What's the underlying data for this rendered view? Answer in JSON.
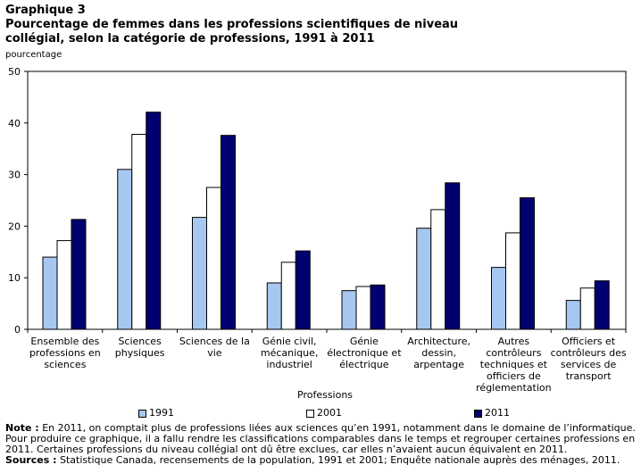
{
  "header": {
    "label": "Graphique 3",
    "title_line1": "Pourcentage de femmes dans les professions scientifiques de niveau",
    "title_line2": "collégial, selon la catégorie de professions, 1991 à 2011"
  },
  "notes": {
    "note_label": "Note :",
    "note_text": " En 2011, on comptait plus de professions liées aux sciences qu’en 1991, notamment dans le domaine de l’informatique. Pour produire ce graphique, il a fallu rendre les classifications comparables dans le temps et regrouper certaines professions en 2011. Certaines professions du niveau collégial ont dû être exclues, car elles n’avaient aucun équivalent en 2011.",
    "sources_label": "Sources :",
    "sources_text": " Statistique Canada, recensements de la population, 1991 et 2001; Enquête nationale auprès des ménages, 2011."
  },
  "chart_data": {
    "type": "bar",
    "title": "Pourcentage de femmes dans les professions scientifiques de niveau collégial, selon la catégorie de professions, 1991 à 2011",
    "ylabel": "pourcentage",
    "xlabel": "Professions",
    "ylim": [
      0,
      50
    ],
    "yticks": [
      0,
      10,
      20,
      30,
      40,
      50
    ],
    "grid": false,
    "legend_position": "bottom",
    "categories": [
      [
        "Ensemble des",
        "professions en",
        "sciences"
      ],
      [
        "Sciences",
        "physiques"
      ],
      [
        "Sciences de la",
        "vie"
      ],
      [
        "Génie civil,",
        "mécanique,",
        "industriel"
      ],
      [
        "Génie",
        "électronique et",
        "électrique"
      ],
      [
        "Architecture,",
        "dessin,",
        "arpentage"
      ],
      [
        "Autres",
        "contrôleurs",
        "techniques et",
        "officiers de",
        "réglementation"
      ],
      [
        "Officiers et",
        "contrôleurs des",
        "services de",
        "transport"
      ]
    ],
    "series": [
      {
        "name": "1991",
        "color": "#a6c8f0",
        "values": [
          14.0,
          31.0,
          21.7,
          9.0,
          7.5,
          19.6,
          12.0,
          5.6
        ]
      },
      {
        "name": "2001",
        "color": "#ffffff",
        "values": [
          17.2,
          37.8,
          27.5,
          13.0,
          8.3,
          23.2,
          18.7,
          8.0
        ]
      },
      {
        "name": "2011",
        "color": "#000070",
        "values": [
          21.3,
          42.1,
          37.6,
          15.2,
          8.6,
          28.4,
          25.5,
          9.4
        ]
      }
    ]
  }
}
